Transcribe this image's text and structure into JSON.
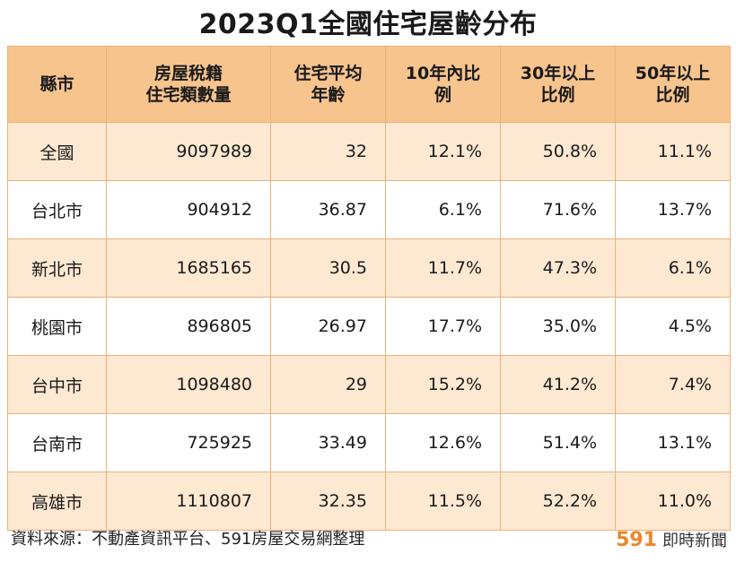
{
  "title": "2023Q1全國住宅屋齡分布",
  "table": {
    "headers": [
      [
        "縣市"
      ],
      [
        "房屋稅籍",
        "住宅類數量"
      ],
      [
        "住宅平均",
        "年齡"
      ],
      [
        "10年內比",
        "例"
      ],
      [
        "30年以上",
        "比例"
      ],
      [
        "50年以上",
        "比例"
      ]
    ],
    "rows": [
      [
        "全國",
        "9097989",
        "32",
        "12.1%",
        "50.8%",
        "11.1%"
      ],
      [
        "台北市",
        "904912",
        "36.87",
        "6.1%",
        "71.6%",
        "13.7%"
      ],
      [
        "新北市",
        "1685165",
        "30.5",
        "11.7%",
        "47.3%",
        "6.1%"
      ],
      [
        "桃園市",
        "896805",
        "26.97",
        "17.7%",
        "35.0%",
        "4.5%"
      ],
      [
        "台中市",
        "1098480",
        "29",
        "15.2%",
        "41.2%",
        "7.4%"
      ],
      [
        "台南市",
        "725925",
        "33.49",
        "12.6%",
        "51.4%",
        "13.1%"
      ],
      [
        "高雄市",
        "1110807",
        "32.35",
        "11.5%",
        "52.2%",
        "11.0%"
      ]
    ]
  },
  "footer": {
    "source": "資料來源：不動產資訊平台、591房屋交易網整理",
    "brand_number": "591",
    "brand_text": "即時新聞"
  },
  "colors": {
    "header_bg": "#f7c48e",
    "stripe_bg": "#fde8d2",
    "border": "#e8b37a",
    "brand_accent": "#e8882e"
  }
}
